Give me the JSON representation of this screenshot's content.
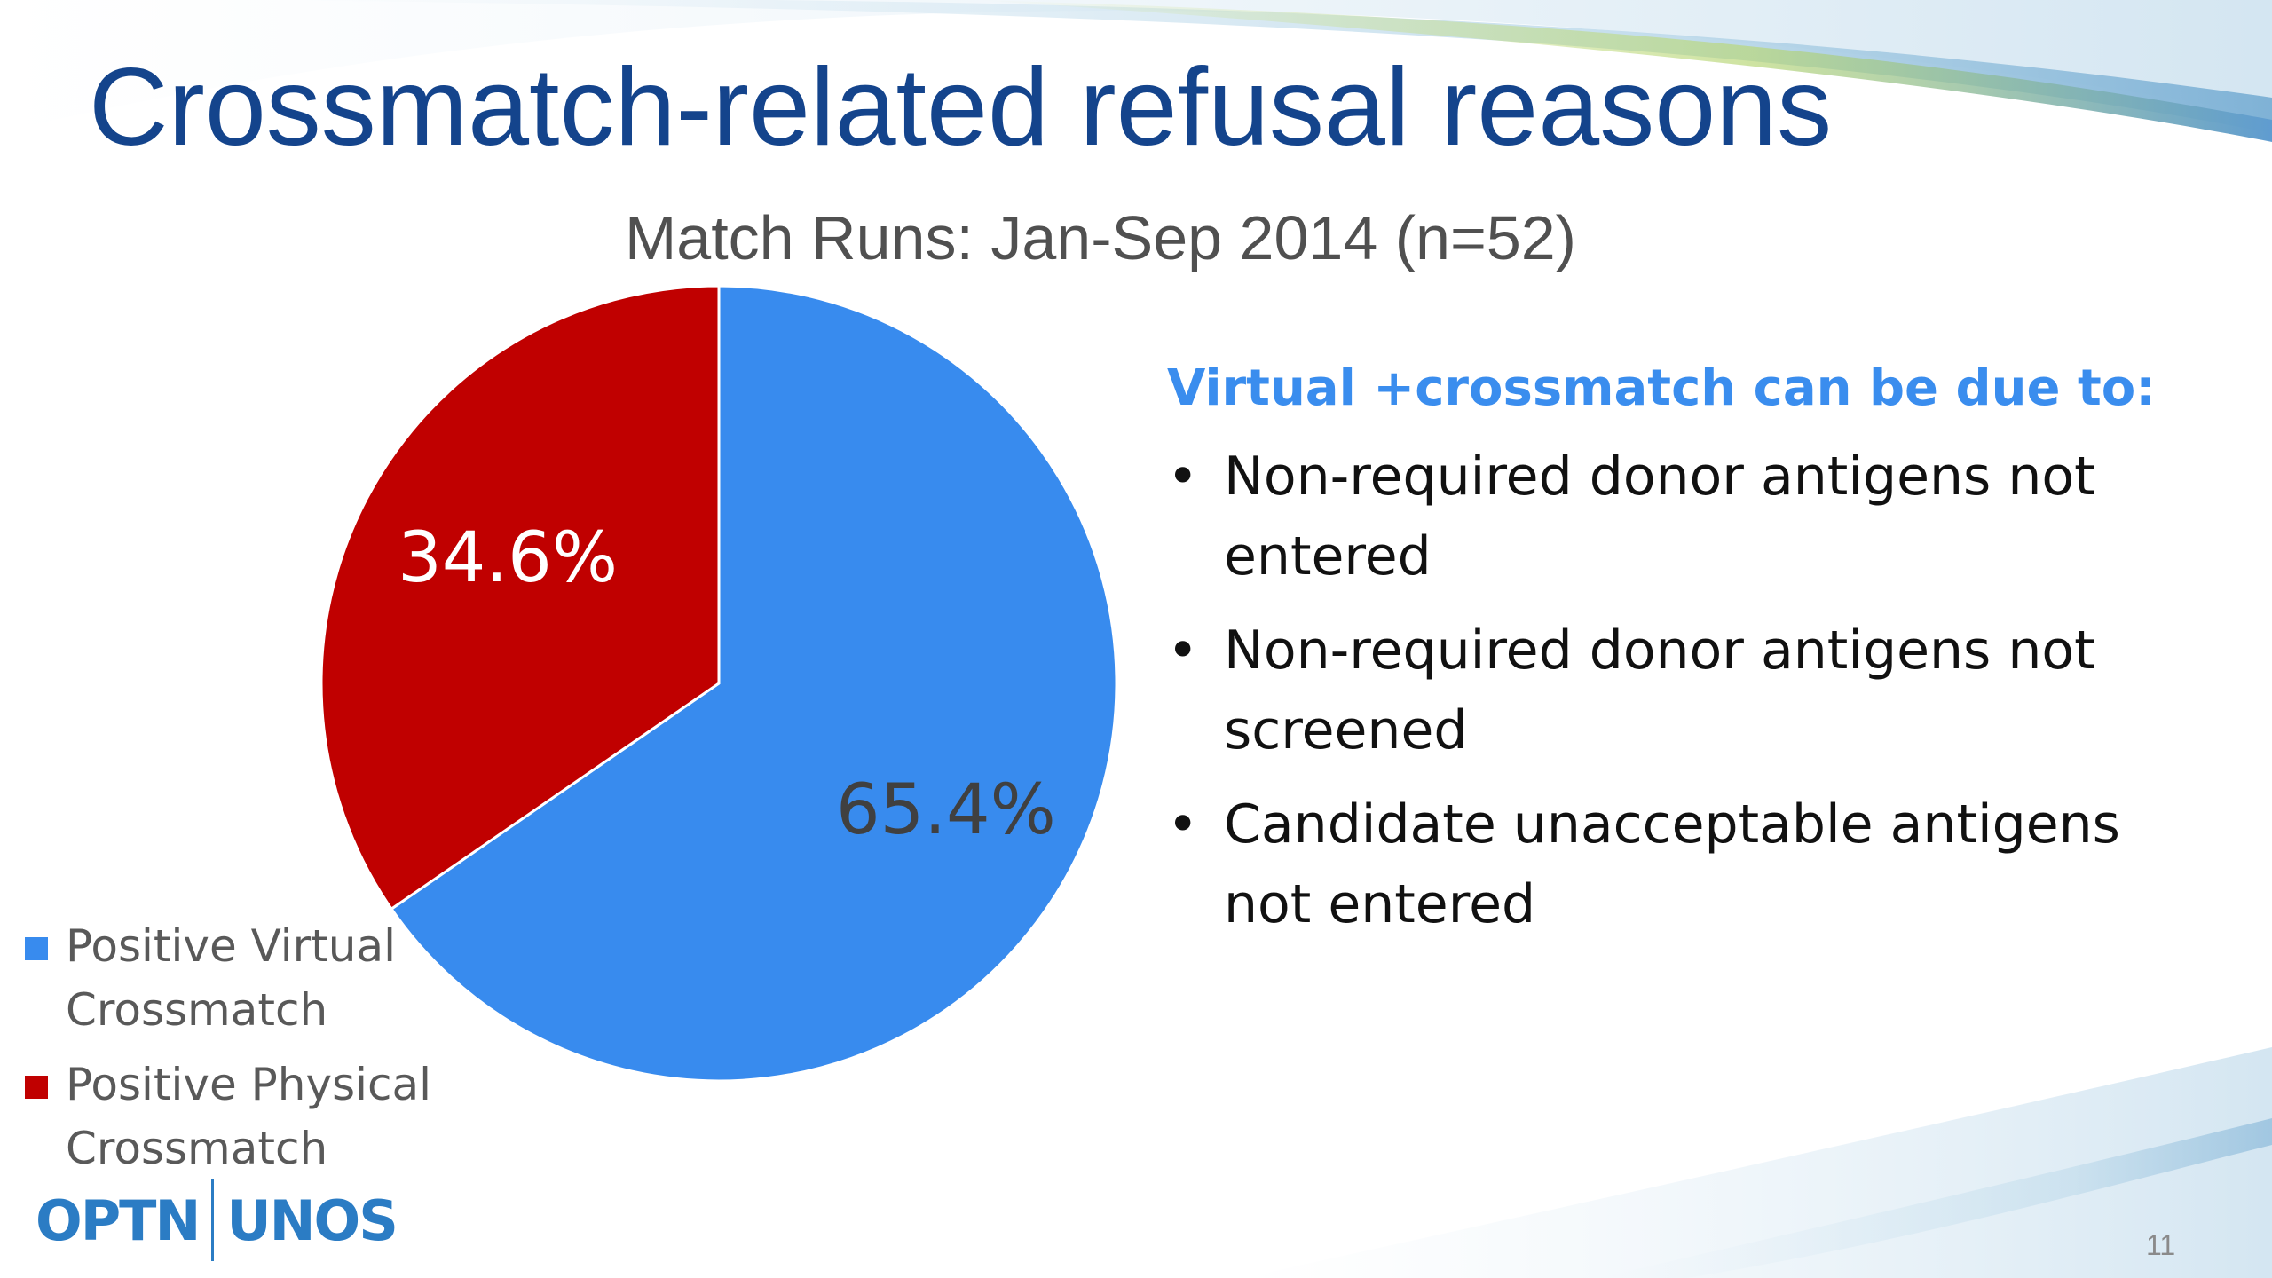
{
  "slide": {
    "title": "Crossmatch-related refusal reasons",
    "page_number": "11",
    "logo_left": "OPTN",
    "logo_right": "UNOS"
  },
  "chart_data": {
    "type": "pie",
    "title": "",
    "subtitle": "Match Runs: Jan-Sep 2014 (n=52)",
    "series": [
      {
        "name": "Positive Virtual Crossmatch",
        "value": 65.4,
        "label": "65.4%",
        "color": "#388bee"
      },
      {
        "name": "Positive Physical Crossmatch",
        "value": 34.6,
        "label": "34.6%",
        "color": "#c00000"
      }
    ],
    "legend_position": "bottom-left"
  },
  "notes": {
    "heading": "Virtual +crossmatch can be due to:",
    "bullet_char": "•",
    "items": [
      "Non-required donor antigens not entered",
      "Non-required donor antigens not screened",
      "Candidate unacceptable antigens not entered"
    ]
  },
  "colors": {
    "title": "#14448c",
    "heading": "#3a8dee",
    "virtual": "#388bee",
    "physical": "#c00000"
  }
}
